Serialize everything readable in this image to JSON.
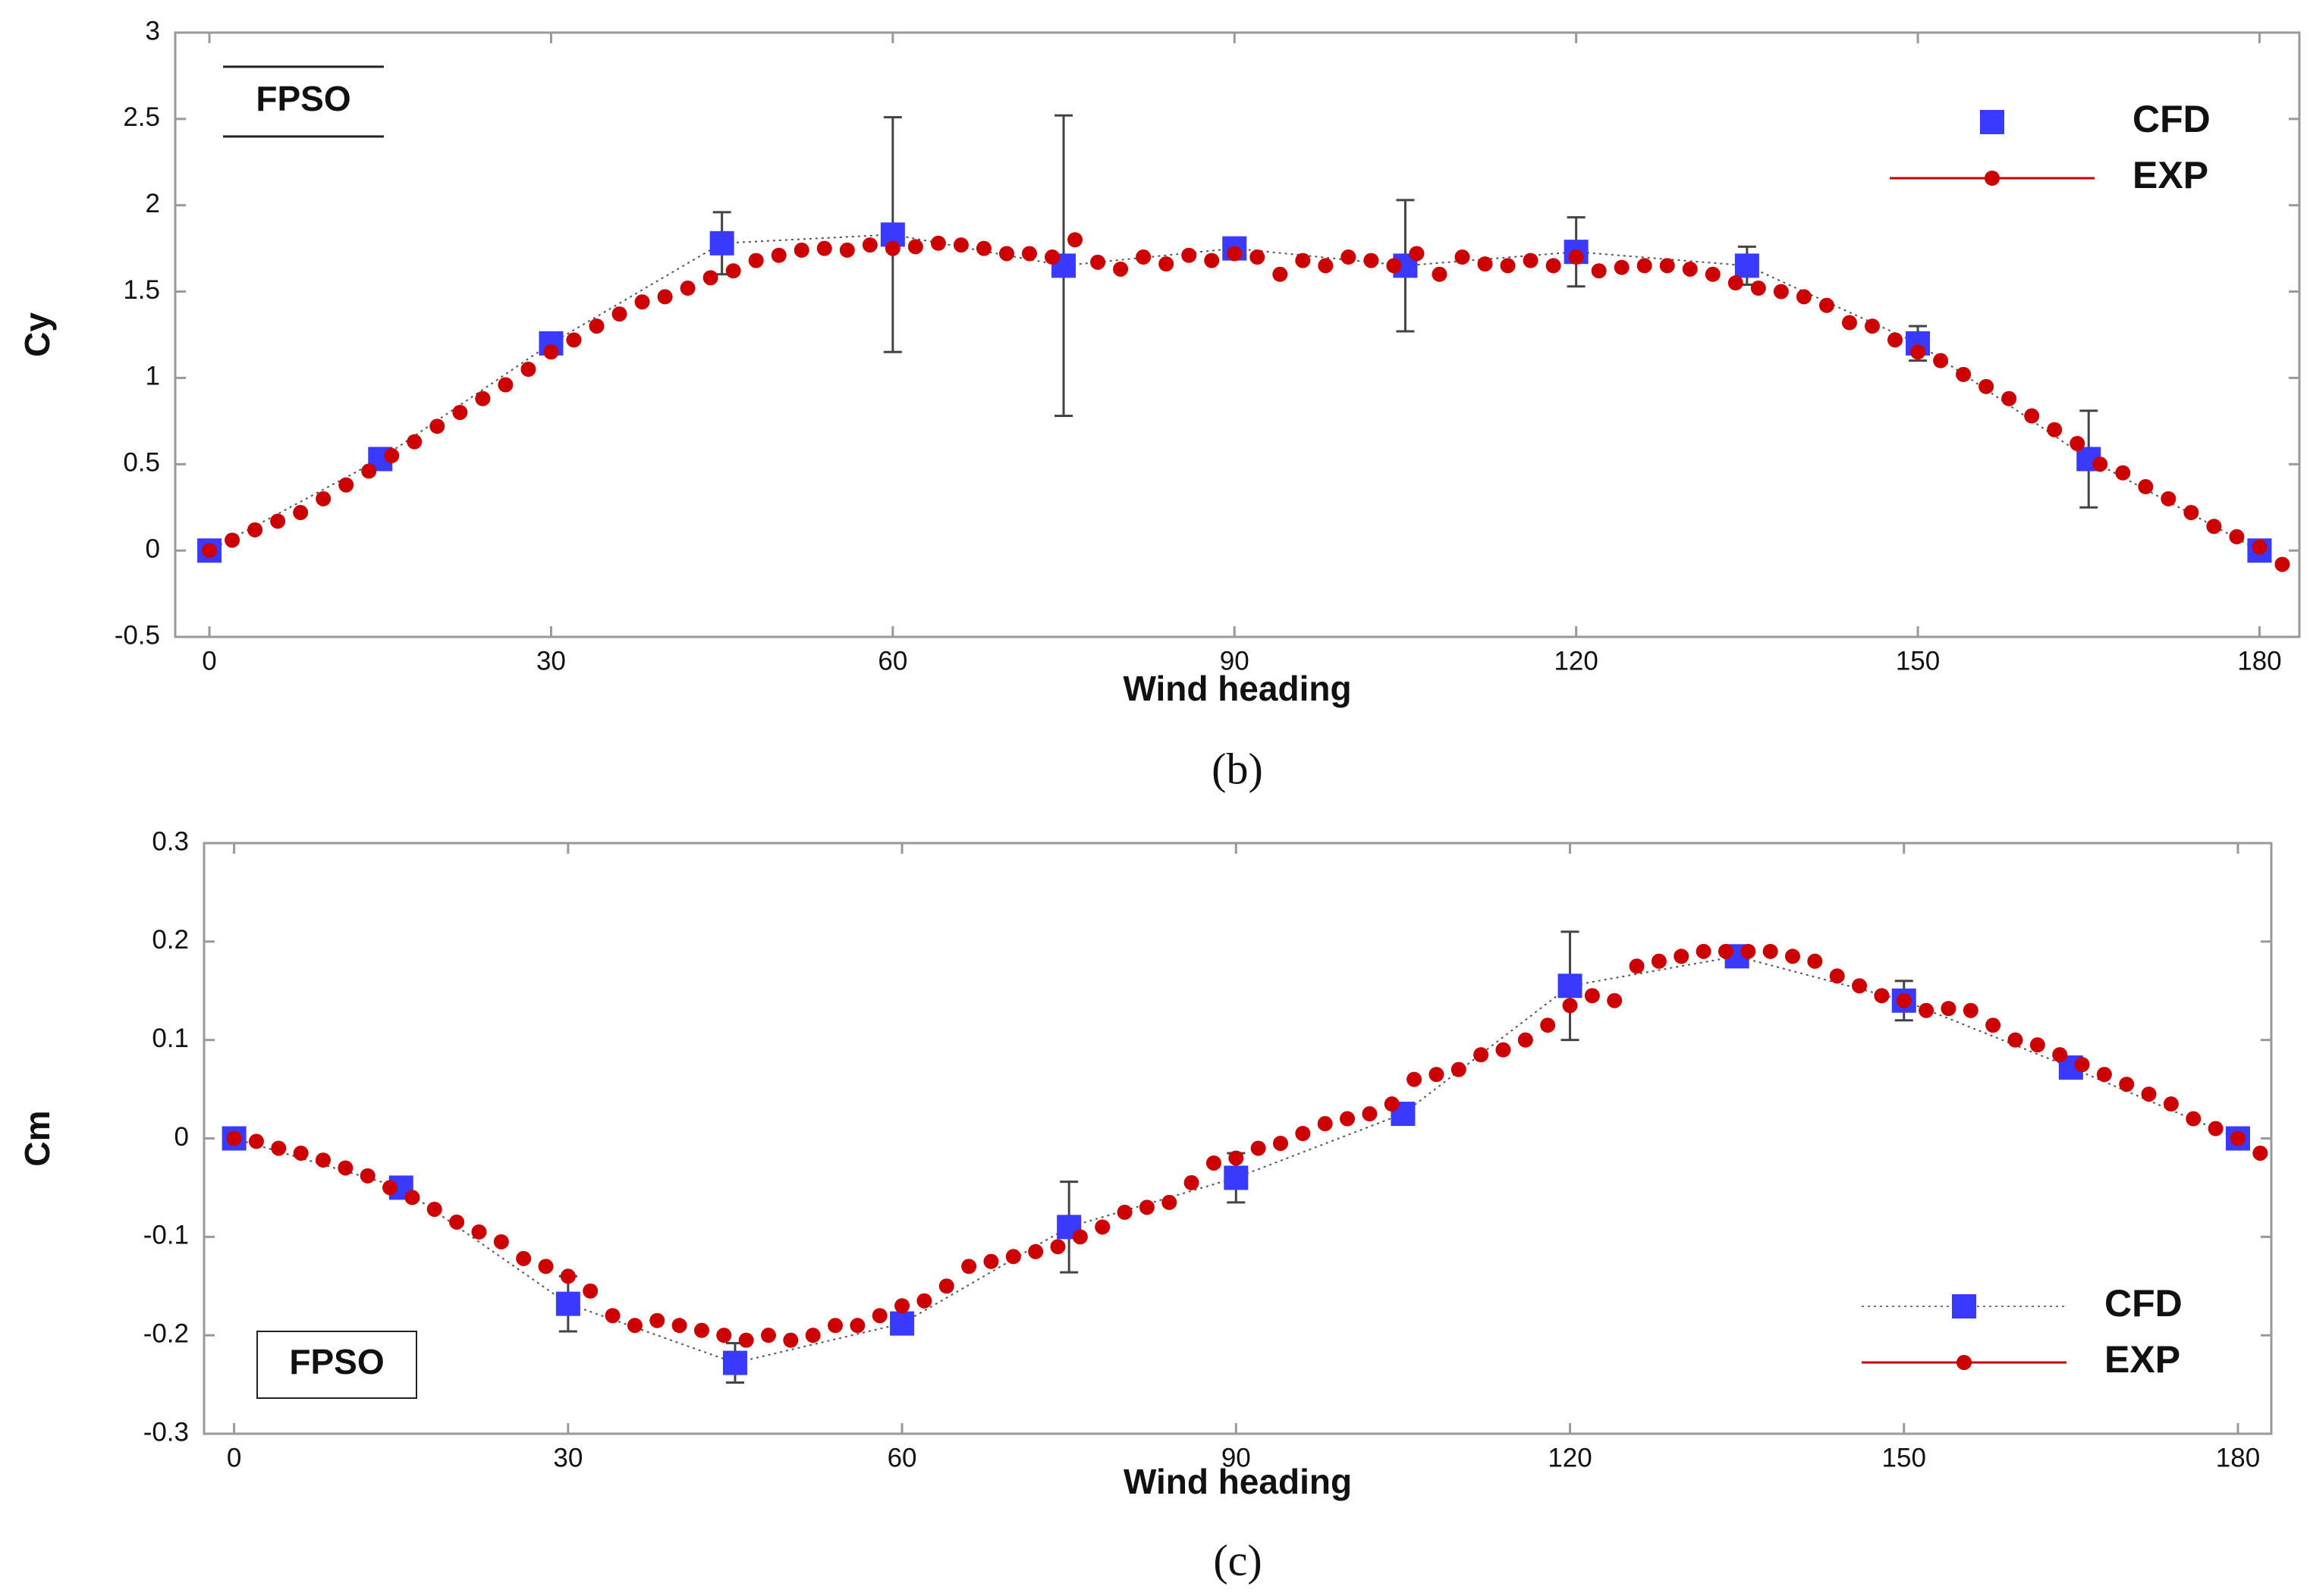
{
  "chart_data": [
    {
      "type": "scatter",
      "caption": "(b)",
      "annotation": "FPSO",
      "xlabel": "Wind heading",
      "ylabel": "Cy",
      "xlim": [
        -3,
        183.5
      ],
      "ylim": [
        -0.5,
        3
      ],
      "xticks": [
        0,
        30,
        60,
        90,
        120,
        150,
        180
      ],
      "yticks": [
        -0.5,
        0,
        0.5,
        1,
        1.5,
        2,
        2.5,
        3
      ],
      "legend": "upper right",
      "grid": false,
      "series": [
        {
          "name": "CFD",
          "color": "#3a3aff",
          "marker": "square",
          "x": [
            0,
            15,
            30,
            45,
            60,
            75,
            90,
            105,
            120,
            135,
            150,
            165,
            180
          ],
          "values": [
            0,
            0.53,
            1.2,
            1.78,
            1.83,
            1.65,
            1.75,
            1.65,
            1.73,
            1.65,
            1.2,
            0.53,
            0
          ],
          "errors": [
            0.01,
            0.03,
            0.05,
            0.18,
            0.68,
            0.87,
            0.05,
            0.38,
            0.2,
            0.11,
            0.1,
            0.28,
            0.01
          ]
        },
        {
          "name": "EXP",
          "color": "#cc0000",
          "marker": "circle",
          "x": [
            0,
            2,
            4,
            6,
            8,
            10,
            12,
            14,
            16,
            18,
            20,
            22,
            24,
            26,
            28,
            30,
            32,
            34,
            36,
            38,
            40,
            42,
            44,
            46,
            48,
            50,
            52,
            54,
            56,
            58,
            60,
            62,
            64,
            66,
            68,
            70,
            72,
            74,
            76,
            78,
            80,
            82,
            84,
            86,
            88,
            90,
            92,
            94,
            96,
            98,
            100,
            102,
            104,
            106,
            108,
            110,
            112,
            114,
            116,
            118,
            120,
            122,
            124,
            126,
            128,
            130,
            132,
            134,
            136,
            138,
            140,
            142,
            144,
            146,
            148,
            150,
            152,
            154,
            156,
            158,
            160,
            162,
            164,
            166,
            168,
            170,
            172,
            174,
            176,
            178,
            180,
            182
          ],
          "values": [
            0,
            0.06,
            0.12,
            0.17,
            0.22,
            0.3,
            0.38,
            0.46,
            0.55,
            0.63,
            0.72,
            0.8,
            0.88,
            0.96,
            1.05,
            1.15,
            1.22,
            1.3,
            1.37,
            1.44,
            1.47,
            1.52,
            1.58,
            1.62,
            1.68,
            1.71,
            1.74,
            1.75,
            1.74,
            1.77,
            1.75,
            1.76,
            1.78,
            1.77,
            1.75,
            1.72,
            1.72,
            1.7,
            1.8,
            1.67,
            1.63,
            1.7,
            1.66,
            1.71,
            1.68,
            1.72,
            1.7,
            1.6,
            1.68,
            1.65,
            1.7,
            1.68,
            1.65,
            1.72,
            1.6,
            1.7,
            1.66,
            1.65,
            1.68,
            1.65,
            1.7,
            1.62,
            1.64,
            1.65,
            1.65,
            1.63,
            1.6,
            1.55,
            1.52,
            1.5,
            1.47,
            1.42,
            1.32,
            1.3,
            1.22,
            1.15,
            1.1,
            1.02,
            0.95,
            0.88,
            0.78,
            0.7,
            0.62,
            0.5,
            0.45,
            0.37,
            0.3,
            0.22,
            0.14,
            0.08,
            0.02,
            -0.08
          ]
        }
      ]
    },
    {
      "type": "scatter",
      "caption": "(c)",
      "annotation": "FPSO",
      "xlabel": "Wind heading",
      "ylabel": "Cm",
      "xlim": [
        -2.7,
        183
      ],
      "ylim": [
        -0.3,
        0.3
      ],
      "xticks": [
        0,
        30,
        60,
        90,
        120,
        150,
        180
      ],
      "yticks": [
        -0.3,
        -0.2,
        -0.1,
        0,
        0.1,
        0.2,
        0.3
      ],
      "legend": "lower right",
      "grid": false,
      "series": [
        {
          "name": "CFD",
          "color": "#3a3aff",
          "marker": "square",
          "x": [
            0,
            15,
            30,
            45,
            60,
            75,
            90,
            105,
            120,
            135,
            150,
            165,
            180
          ],
          "values": [
            0,
            -0.05,
            -0.168,
            -0.228,
            -0.188,
            -0.09,
            -0.04,
            0.025,
            0.155,
            0.185,
            0.14,
            0.072,
            0
          ],
          "errors": [
            0.003,
            0.005,
            0.028,
            0.02,
            0.005,
            0.046,
            0.025,
            0.005,
            0.055,
            0.005,
            0.02,
            0.005,
            0.003
          ]
        },
        {
          "name": "EXP",
          "color": "#cc0000",
          "marker": "circle",
          "x": [
            0,
            2,
            4,
            6,
            8,
            10,
            12,
            14,
            16,
            18,
            20,
            22,
            24,
            26,
            28,
            30,
            32,
            34,
            36,
            38,
            40,
            42,
            44,
            46,
            48,
            50,
            52,
            54,
            56,
            58,
            60,
            62,
            64,
            66,
            68,
            70,
            72,
            74,
            76,
            78,
            80,
            82,
            84,
            86,
            88,
            90,
            92,
            94,
            96,
            98,
            100,
            102,
            104,
            106,
            108,
            110,
            112,
            114,
            116,
            118,
            120,
            122,
            124,
            126,
            128,
            130,
            132,
            134,
            136,
            138,
            140,
            142,
            144,
            146,
            148,
            150,
            152,
            154,
            156,
            158,
            160,
            162,
            164,
            166,
            168,
            170,
            172,
            174,
            176,
            178,
            180,
            182
          ],
          "values": [
            0,
            -0.003,
            -0.01,
            -0.015,
            -0.022,
            -0.03,
            -0.038,
            -0.05,
            -0.06,
            -0.072,
            -0.085,
            -0.095,
            -0.105,
            -0.122,
            -0.13,
            -0.14,
            -0.155,
            -0.18,
            -0.19,
            -0.185,
            -0.19,
            -0.195,
            -0.2,
            -0.205,
            -0.2,
            -0.205,
            -0.2,
            -0.19,
            -0.19,
            -0.18,
            -0.17,
            -0.165,
            -0.15,
            -0.13,
            -0.125,
            -0.12,
            -0.115,
            -0.11,
            -0.1,
            -0.09,
            -0.075,
            -0.07,
            -0.065,
            -0.045,
            -0.025,
            -0.02,
            -0.01,
            -0.005,
            0.005,
            0.015,
            0.02,
            0.025,
            0.035,
            0.06,
            0.065,
            0.07,
            0.085,
            0.09,
            0.1,
            0.115,
            0.135,
            0.145,
            0.14,
            0.175,
            0.18,
            0.185,
            0.19,
            0.19,
            0.19,
            0.19,
            0.185,
            0.18,
            0.165,
            0.155,
            0.145,
            0.14,
            0.13,
            0.132,
            0.13,
            0.115,
            0.1,
            0.095,
            0.085,
            0.075,
            0.065,
            0.055,
            0.045,
            0.035,
            0.02,
            0.01,
            0,
            -0.015
          ]
        }
      ]
    }
  ]
}
